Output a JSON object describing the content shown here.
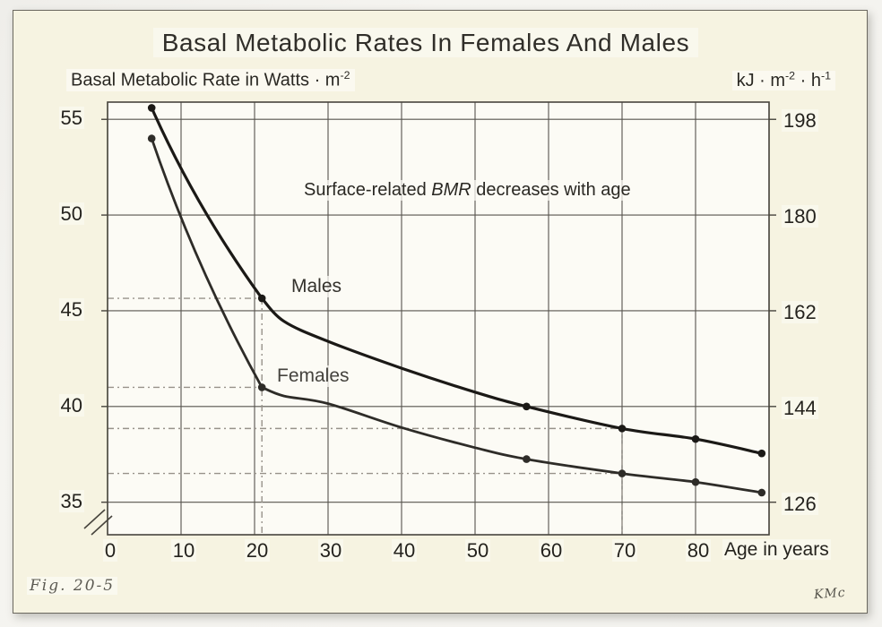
{
  "labels": {
    "title": "Basal Metabolic Rates In Females And Males",
    "left_axis_main": "Basal Metabolic Rate in Watts · m",
    "left_axis_sup": "-2",
    "right_axis_p1": "kJ · m",
    "right_axis_s1": "-2",
    "right_axis_p2": " · h",
    "right_axis_s2": "-1",
    "annotation_pre": "Surface-related ",
    "annotation_em": "BMR",
    "annotation_post": " decreases with age",
    "males": "Males",
    "females": "Females",
    "age_suffix": "Age in years",
    "fig": "Fig. 20-5",
    "signature": "KMc"
  },
  "colors": {
    "slide_bg": "#f6f3e1",
    "plot_bg": "#fcfbf5",
    "grid": "#57544e",
    "frame": "#47443d",
    "curve_male": "#1b1916",
    "curve_female": "#2e2c28",
    "ref_line": "#97928a",
    "text": "#2a2823"
  },
  "chart_data": {
    "type": "line",
    "title": "Basal Metabolic Rates In Females And Males",
    "xlabel": "Age in years",
    "ylabel_left": "Basal Metabolic Rate in Watts · m⁻²",
    "ylabel_right": "kJ · m⁻² · h⁻¹",
    "annotation": "Surface-related BMR decreases with age",
    "grid": true,
    "xlim": [
      0,
      90
    ],
    "ylim": [
      33.3,
      55.9
    ],
    "x_gridline_step": 10,
    "x_ticks": [
      0,
      10,
      20,
      30,
      40,
      50,
      60,
      70,
      80
    ],
    "y_ticks_left": [
      55,
      50,
      45,
      40,
      35
    ],
    "y_ticks_right": [
      198,
      180,
      162,
      144,
      126
    ],
    "y_axis_break": true,
    "series": [
      {
        "name": "Males",
        "x": [
          6,
          21,
          24,
          30,
          40,
          50,
          57,
          70,
          80,
          89
        ],
        "y": [
          55.6,
          45.65,
          44.45,
          43.4,
          42.0,
          40.75,
          40.0,
          38.85,
          38.3,
          37.55
        ],
        "marker_x": [
          6,
          21,
          57,
          70,
          80,
          89
        ]
      },
      {
        "name": "Females",
        "x": [
          6,
          21,
          24,
          30,
          40,
          50,
          57,
          70,
          80,
          89
        ],
        "y": [
          54.0,
          41.0,
          40.55,
          40.15,
          38.9,
          37.85,
          37.25,
          36.5,
          36.05,
          35.5
        ],
        "marker_x": [
          6,
          21,
          57,
          70,
          80,
          89
        ]
      }
    ],
    "reference_lines": [
      {
        "x1": 0,
        "y1": 45.65,
        "x2": 21,
        "y2": 45.65
      },
      {
        "x1": 0,
        "y1": 41.0,
        "x2": 21,
        "y2": 41.0
      },
      {
        "x1": 21,
        "y1": 45.65,
        "x2": 21,
        "y2": 33.3
      },
      {
        "x1": 0,
        "y1": 38.85,
        "x2": 70,
        "y2": 38.85
      },
      {
        "x1": 0,
        "y1": 36.5,
        "x2": 70,
        "y2": 36.5
      },
      {
        "x1": 70,
        "y1": 38.85,
        "x2": 70,
        "y2": 33.3
      }
    ]
  }
}
